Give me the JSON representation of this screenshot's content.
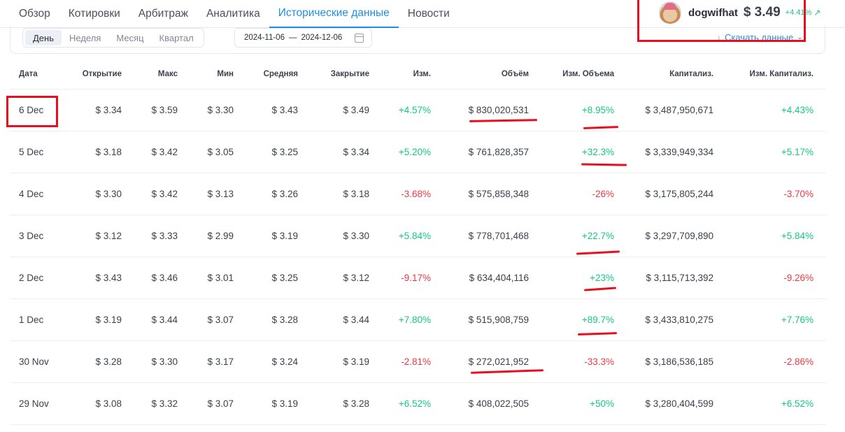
{
  "nav": {
    "tabs": [
      {
        "label": "Обзор"
      },
      {
        "label": "Котировки"
      },
      {
        "label": "Арбитраж"
      },
      {
        "label": "Аналитика"
      },
      {
        "label": "Исторические данные"
      },
      {
        "label": "Новости"
      }
    ],
    "active_tab": "Исторические данные"
  },
  "coin": {
    "name": "dogwifhat",
    "price": "$ 3.49",
    "change": "+4.41%",
    "change_color": "#16c784"
  },
  "filters": {
    "periods": [
      "День",
      "Неделя",
      "Месяц",
      "Квартал"
    ],
    "active_period": "День",
    "date_from": "2024-11-06",
    "date_separator": "—",
    "date_to": "2024-12-06",
    "download_label": "Скачать данные"
  },
  "table": {
    "columns": [
      "Дата",
      "Открытие",
      "Макс",
      "Мин",
      "Средняя",
      "Закрытие",
      "Изм.",
      "Объём",
      "Изм. Объема",
      "Капитализ.",
      "Изм. Капитализ."
    ],
    "rows": [
      {
        "date": "6 Dec",
        "open": "$ 3.34",
        "high": "$ 3.59",
        "low": "$ 3.30",
        "avg": "$ 3.43",
        "close": "$ 3.49",
        "change": "+4.57%",
        "volume": "$ 830,020,531",
        "vol_change": "+8.95%",
        "cap": "$ 3,487,950,671",
        "cap_change": "+4.43%"
      },
      {
        "date": "5 Dec",
        "open": "$ 3.18",
        "high": "$ 3.42",
        "low": "$ 3.05",
        "avg": "$ 3.25",
        "close": "$ 3.34",
        "change": "+5.20%",
        "volume": "$ 761,828,357",
        "vol_change": "+32.3%",
        "cap": "$ 3,339,949,334",
        "cap_change": "+5.17%"
      },
      {
        "date": "4 Dec",
        "open": "$ 3.30",
        "high": "$ 3.42",
        "low": "$ 3.13",
        "avg": "$ 3.26",
        "close": "$ 3.18",
        "change": "-3.68%",
        "volume": "$ 575,858,348",
        "vol_change": "-26%",
        "cap": "$ 3,175,805,244",
        "cap_change": "-3.70%"
      },
      {
        "date": "3 Dec",
        "open": "$ 3.12",
        "high": "$ 3.33",
        "low": "$ 2.99",
        "avg": "$ 3.19",
        "close": "$ 3.30",
        "change": "+5.84%",
        "volume": "$ 778,701,468",
        "vol_change": "+22.7%",
        "cap": "$ 3,297,709,890",
        "cap_change": "+5.84%"
      },
      {
        "date": "2 Dec",
        "open": "$ 3.43",
        "high": "$ 3.46",
        "low": "$ 3.01",
        "avg": "$ 3.25",
        "close": "$ 3.12",
        "change": "-9.17%",
        "volume": "$ 634,404,116",
        "vol_change": "+23%",
        "cap": "$ 3,115,713,392",
        "cap_change": "-9.26%"
      },
      {
        "date": "1 Dec",
        "open": "$ 3.19",
        "high": "$ 3.44",
        "low": "$ 3.07",
        "avg": "$ 3.28",
        "close": "$ 3.44",
        "change": "+7.80%",
        "volume": "$ 515,908,759",
        "vol_change": "+89.7%",
        "cap": "$ 3,433,810,275",
        "cap_change": "+7.76%"
      },
      {
        "date": "30 Nov",
        "open": "$ 3.28",
        "high": "$ 3.30",
        "low": "$ 3.17",
        "avg": "$ 3.24",
        "close": "$ 3.19",
        "change": "-2.81%",
        "volume": "$ 272,021,952",
        "vol_change": "-33.3%",
        "cap": "$ 3,186,536,185",
        "cap_change": "-2.86%"
      },
      {
        "date": "29 Nov",
        "open": "$ 3.08",
        "high": "$ 3.32",
        "low": "$ 3.07",
        "avg": "$ 3.19",
        "close": "$ 3.28",
        "change": "+6.52%",
        "volume": "$ 408,022,505",
        "vol_change": "+50%",
        "cap": "$ 3,280,404,599",
        "cap_change": "+6.52%"
      }
    ]
  },
  "colors": {
    "accent": "#1f8fe5",
    "positive": "#16c784",
    "negative": "#ea3943",
    "annotation": "#e8101f"
  }
}
